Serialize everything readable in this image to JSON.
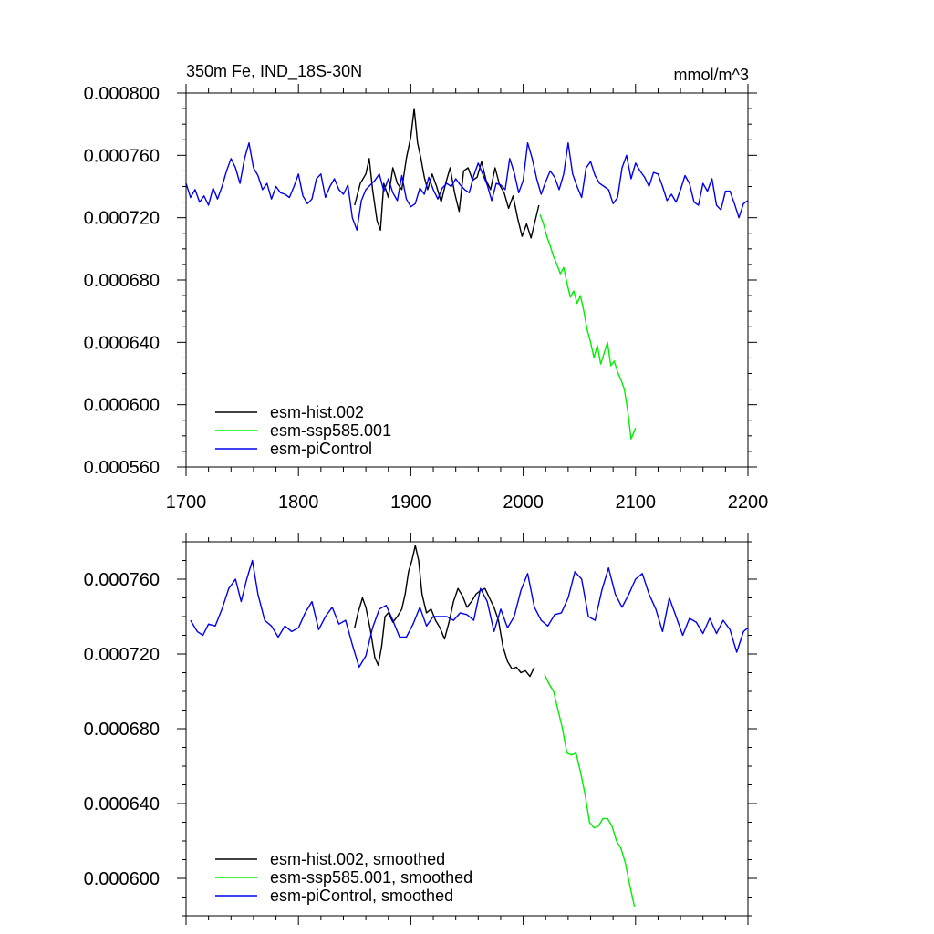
{
  "chart_data": [
    {
      "type": "line",
      "title_left": "350m Fe, IND_18S-30N",
      "title_right": "mmol/m^3",
      "xlabel": "",
      "ylabel": "",
      "xlim": [
        1700,
        2200
      ],
      "ylim": [
        0.00056,
        0.0008
      ],
      "x_ticks": [
        1700,
        1800,
        1900,
        2000,
        2100,
        2200
      ],
      "x_tick_labels": [
        "1700",
        "1800",
        "1900",
        "2000",
        "2100",
        "2200"
      ],
      "y_ticks": [
        0.00056,
        0.0006,
        0.00064,
        0.00068,
        0.00072,
        0.00076,
        0.0008
      ],
      "y_tick_labels": [
        "0.000560",
        "0.000600",
        "0.000640",
        "0.000680",
        "0.000720",
        "0.000760",
        "0.000800"
      ],
      "legend_position": "lower-left",
      "series": [
        {
          "name": "esm-hist.002",
          "color": "#000000",
          "x": [
            1850,
            1855,
            1860,
            1863,
            1866,
            1870,
            1873,
            1876,
            1880,
            1884,
            1888,
            1892,
            1896,
            1900,
            1903,
            1906,
            1909,
            1912,
            1915,
            1919,
            1923,
            1927,
            1931,
            1935,
            1939,
            1943,
            1947,
            1951,
            1955,
            1959,
            1963,
            1967,
            1971,
            1975,
            1979,
            1983,
            1987,
            1991,
            1995,
            1999,
            2003,
            2007,
            2010,
            2014
          ],
          "y": [
            0.000728,
            0.000742,
            0.000748,
            0.000758,
            0.000738,
            0.000718,
            0.000712,
            0.000742,
            0.000733,
            0.000752,
            0.000742,
            0.000738,
            0.000758,
            0.000772,
            0.00079,
            0.000768,
            0.000758,
            0.000746,
            0.000738,
            0.000748,
            0.00074,
            0.00073,
            0.000742,
            0.000752,
            0.000736,
            0.000724,
            0.00075,
            0.000752,
            0.000744,
            0.000746,
            0.000756,
            0.000744,
            0.000738,
            0.000752,
            0.000741,
            0.000736,
            0.000726,
            0.000734,
            0.00072,
            0.000708,
            0.000716,
            0.000707,
            0.000716,
            0.000728
          ]
        },
        {
          "name": "esm-ssp585.001",
          "color": "#00ee00",
          "x": [
            2015,
            2018,
            2021,
            2024,
            2027,
            2030,
            2033,
            2036,
            2039,
            2042,
            2045,
            2048,
            2051,
            2054,
            2057,
            2060,
            2063,
            2066,
            2069,
            2072,
            2075,
            2078,
            2081,
            2084,
            2087,
            2090,
            2093,
            2096,
            2100
          ],
          "y": [
            0.000722,
            0.000716,
            0.000708,
            0.000702,
            0.000695,
            0.00069,
            0.000684,
            0.000688,
            0.000678,
            0.000669,
            0.000673,
            0.000665,
            0.00067,
            0.00066,
            0.000648,
            0.00064,
            0.00063,
            0.000638,
            0.000626,
            0.000633,
            0.00064,
            0.000625,
            0.000628,
            0.000621,
            0.000616,
            0.00061,
            0.000596,
            0.000578,
            0.000585
          ]
        },
        {
          "name": "esm-piControl",
          "color": "#0000ee",
          "x": [
            1700,
            1704,
            1708,
            1712,
            1716,
            1720,
            1724,
            1728,
            1732,
            1736,
            1740,
            1744,
            1748,
            1752,
            1756,
            1760,
            1764,
            1768,
            1772,
            1776,
            1780,
            1784,
            1788,
            1792,
            1796,
            1800,
            1804,
            1808,
            1812,
            1816,
            1820,
            1824,
            1828,
            1832,
            1836,
            1840,
            1844,
            1848,
            1852,
            1856,
            1860,
            1864,
            1868,
            1872,
            1876,
            1880,
            1884,
            1888,
            1892,
            1896,
            1900,
            1904,
            1908,
            1912,
            1916,
            1920,
            1924,
            1928,
            1932,
            1936,
            1940,
            1944,
            1948,
            1952,
            1956,
            1960,
            1964,
            1968,
            1972,
            1976,
            1980,
            1984,
            1988,
            1992,
            1996,
            2000,
            2004,
            2008,
            2012,
            2016,
            2020,
            2024,
            2028,
            2032,
            2036,
            2040,
            2044,
            2048,
            2052,
            2056,
            2060,
            2064,
            2068,
            2072,
            2076,
            2080,
            2084,
            2088,
            2092,
            2096,
            2100,
            2104,
            2108,
            2112,
            2116,
            2120,
            2124,
            2128,
            2132,
            2136,
            2140,
            2144,
            2148,
            2152,
            2156,
            2160,
            2164,
            2168,
            2172,
            2176,
            2180,
            2184,
            2188,
            2192,
            2196,
            2200
          ],
          "y": [
            0.000742,
            0.000733,
            0.000738,
            0.00073,
            0.000734,
            0.000728,
            0.000739,
            0.000732,
            0.00074,
            0.00075,
            0.000758,
            0.000752,
            0.000742,
            0.000758,
            0.000768,
            0.000752,
            0.000747,
            0.000738,
            0.000742,
            0.000732,
            0.00074,
            0.000736,
            0.000735,
            0.000733,
            0.00074,
            0.000748,
            0.000734,
            0.000729,
            0.000732,
            0.000745,
            0.000748,
            0.000733,
            0.00074,
            0.000745,
            0.000738,
            0.000735,
            0.000741,
            0.00072,
            0.000712,
            0.000731,
            0.000738,
            0.000741,
            0.000744,
            0.000748,
            0.000737,
            0.000745,
            0.000736,
            0.000731,
            0.000747,
            0.000732,
            0.000727,
            0.000729,
            0.000739,
            0.000735,
            0.000746,
            0.000738,
            0.000732,
            0.000739,
            0.000742,
            0.00074,
            0.000745,
            0.000741,
            0.000738,
            0.000736,
            0.000747,
            0.000755,
            0.000748,
            0.000741,
            0.000731,
            0.000742,
            0.000741,
            0.000738,
            0.000758,
            0.000749,
            0.000736,
            0.000744,
            0.000768,
            0.000758,
            0.000745,
            0.000735,
            0.000743,
            0.00075,
            0.000746,
            0.000738,
            0.000748,
            0.000768,
            0.000748,
            0.00074,
            0.000733,
            0.000752,
            0.000756,
            0.000747,
            0.000742,
            0.00074,
            0.000738,
            0.000729,
            0.000733,
            0.000752,
            0.00076,
            0.000745,
            0.000755,
            0.00075,
            0.000746,
            0.00074,
            0.000749,
            0.000748,
            0.00074,
            0.000731,
            0.000735,
            0.00073,
            0.000738,
            0.000747,
            0.000742,
            0.00073,
            0.000728,
            0.000742,
            0.000737,
            0.000745,
            0.000728,
            0.000725,
            0.000737,
            0.000737,
            0.000729,
            0.00072,
            0.000729,
            0.000731
          ]
        }
      ]
    },
    {
      "type": "line",
      "xlabel": "",
      "ylabel": "",
      "xlim": [
        1700,
        2200
      ],
      "ylim": [
        0.00058,
        0.00078
      ],
      "y_ticks": [
        0.0006,
        0.00064,
        0.00068,
        0.00072,
        0.00076
      ],
      "y_tick_labels": [
        "0.000600",
        "0.000640",
        "0.000680",
        "0.000720",
        "0.000760"
      ],
      "legend_position": "lower-left",
      "series": [
        {
          "name": "esm-hist.002, smoothed",
          "color": "#000000",
          "x": [
            1850,
            1853,
            1857,
            1860,
            1864,
            1868,
            1871,
            1874,
            1877,
            1880,
            1884,
            1888,
            1892,
            1895,
            1898,
            1901,
            1904,
            1907,
            1910,
            1914,
            1918,
            1922,
            1926,
            1930,
            1934,
            1938,
            1942,
            1946,
            1950,
            1954,
            1958,
            1962,
            1966,
            1970,
            1974,
            1978,
            1982,
            1986,
            1990,
            1994,
            1998,
            2002,
            2006,
            2010
          ],
          "y": [
            0.000734,
            0.000742,
            0.00075,
            0.000745,
            0.000733,
            0.000718,
            0.000714,
            0.000724,
            0.00074,
            0.000742,
            0.000737,
            0.00074,
            0.000744,
            0.000752,
            0.000764,
            0.00077,
            0.000778,
            0.00077,
            0.000752,
            0.000742,
            0.000744,
            0.000738,
            0.000734,
            0.000728,
            0.000737,
            0.000748,
            0.000755,
            0.000751,
            0.000745,
            0.000748,
            0.000752,
            0.000754,
            0.000755,
            0.00075,
            0.000745,
            0.000738,
            0.000724,
            0.000716,
            0.000712,
            0.000713,
            0.00071,
            0.000711,
            0.000708,
            0.000713
          ]
        },
        {
          "name": "esm-ssp585.001, smoothed",
          "color": "#00ee00",
          "x": [
            2019,
            2023,
            2027,
            2031,
            2035,
            2039,
            2043,
            2047,
            2051,
            2055,
            2059,
            2063,
            2067,
            2071,
            2075,
            2079,
            2083,
            2087,
            2091,
            2095,
            2099
          ],
          "y": [
            0.000709,
            0.000704,
            0.0007,
            0.00069,
            0.00068,
            0.000667,
            0.000666,
            0.000667,
            0.000657,
            0.000645,
            0.00063,
            0.000627,
            0.000628,
            0.000632,
            0.000632,
            0.000628,
            0.00062,
            0.000616,
            0.000608,
            0.000596,
            0.000585
          ]
        },
        {
          "name": "esm-piControl, smoothed",
          "color": "#0000ee",
          "x": [
            1704,
            1710,
            1715,
            1720,
            1726,
            1732,
            1738,
            1744,
            1749,
            1754,
            1759,
            1764,
            1770,
            1776,
            1782,
            1788,
            1794,
            1800,
            1806,
            1812,
            1818,
            1824,
            1830,
            1836,
            1842,
            1848,
            1854,
            1860,
            1866,
            1872,
            1878,
            1884,
            1890,
            1896,
            1902,
            1908,
            1914,
            1920,
            1926,
            1932,
            1938,
            1944,
            1950,
            1956,
            1962,
            1968,
            1974,
            1980,
            1986,
            1992,
            1998,
            2004,
            2010,
            2016,
            2022,
            2028,
            2034,
            2040,
            2046,
            2052,
            2058,
            2064,
            2070,
            2076,
            2082,
            2088,
            2094,
            2100,
            2106,
            2112,
            2118,
            2124,
            2130,
            2136,
            2142,
            2148,
            2154,
            2160,
            2166,
            2172,
            2178,
            2184,
            2190,
            2196,
            2200
          ],
          "y": [
            0.000738,
            0.000732,
            0.00073,
            0.000736,
            0.000735,
            0.000744,
            0.000755,
            0.00076,
            0.000748,
            0.00076,
            0.00077,
            0.000752,
            0.000738,
            0.000735,
            0.000729,
            0.000735,
            0.000732,
            0.000734,
            0.000742,
            0.000748,
            0.000733,
            0.00074,
            0.000745,
            0.000736,
            0.000738,
            0.000725,
            0.000713,
            0.000719,
            0.000734,
            0.000744,
            0.000746,
            0.000738,
            0.000729,
            0.000729,
            0.000736,
            0.000745,
            0.000735,
            0.00074,
            0.00074,
            0.00074,
            0.000738,
            0.000742,
            0.000741,
            0.000738,
            0.000755,
            0.000748,
            0.000732,
            0.000744,
            0.000734,
            0.00074,
            0.000754,
            0.000763,
            0.000745,
            0.000738,
            0.000735,
            0.000741,
            0.000742,
            0.00075,
            0.000764,
            0.00076,
            0.00074,
            0.000738,
            0.000754,
            0.000766,
            0.000752,
            0.000745,
            0.000752,
            0.00076,
            0.000763,
            0.000752,
            0.000744,
            0.000732,
            0.00075,
            0.00074,
            0.00073,
            0.000739,
            0.000737,
            0.000731,
            0.000739,
            0.000731,
            0.000738,
            0.000733,
            0.000721,
            0.000732,
            0.000734
          ]
        }
      ]
    }
  ]
}
